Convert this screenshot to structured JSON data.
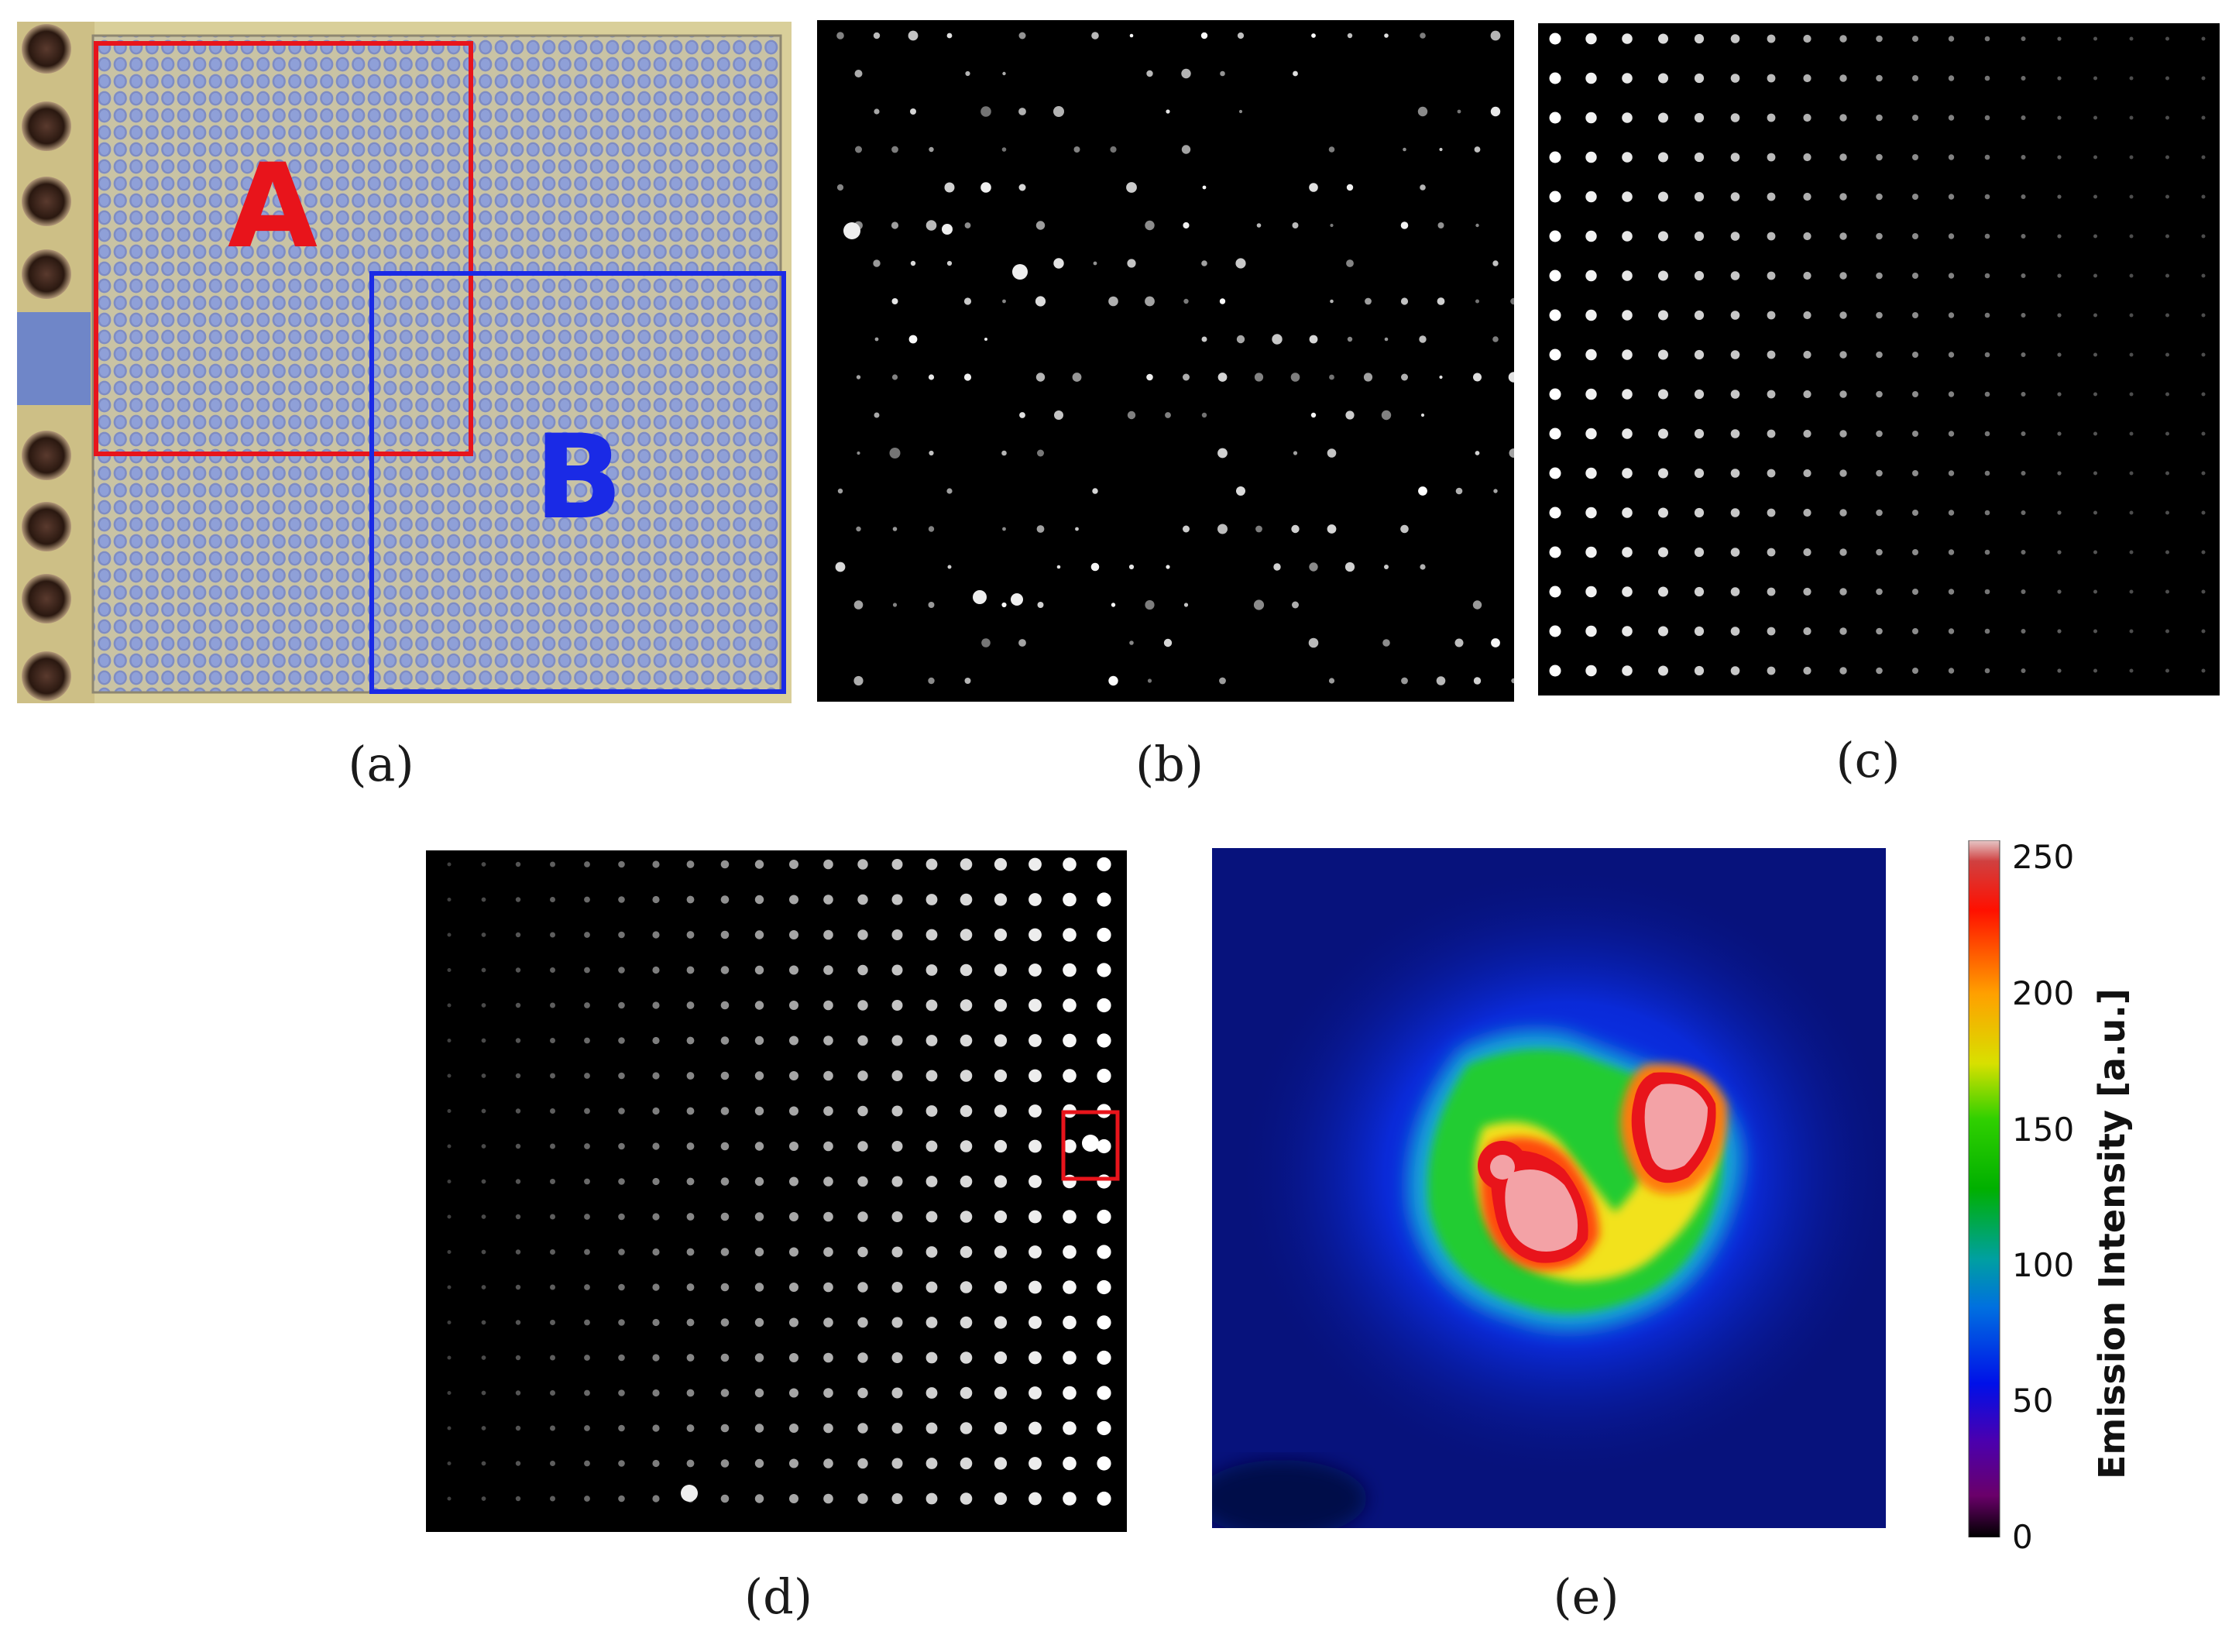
{
  "panels": {
    "a": {
      "caption": "(a)",
      "region_a_label": "A",
      "region_b_label": "B",
      "region_a_color": "#e8141b",
      "region_b_color": "#1a2ae6"
    },
    "b": {
      "caption": "(b)"
    },
    "c": {
      "caption": "(c)"
    },
    "d": {
      "caption": "(d)",
      "highlight_color": "#e8141b"
    },
    "e": {
      "caption": "(e)",
      "colorbar": {
        "title": "Emission Intensity [a.u.]",
        "ticks": [
          "250",
          "200",
          "150",
          "100",
          "50",
          "0"
        ],
        "range": [
          0,
          255
        ]
      }
    }
  }
}
